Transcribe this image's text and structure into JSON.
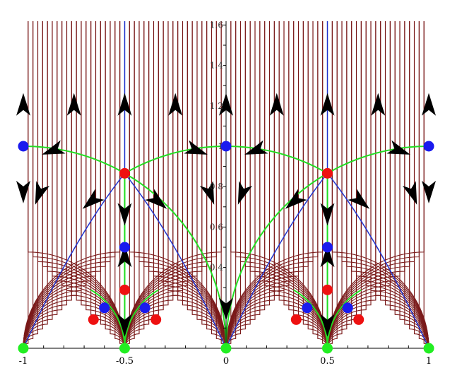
{
  "chart_data": {
    "type": "phase-portrait",
    "x_range": [
      -1,
      1
    ],
    "y_range": [
      0,
      1.62
    ],
    "x_ticks": [
      {
        "value": -1,
        "label": "-1"
      },
      {
        "value": -0.5,
        "label": "-0.5"
      },
      {
        "value": 0,
        "label": "0"
      },
      {
        "value": 0.5,
        "label": "0.5"
      },
      {
        "value": 1,
        "label": "1"
      }
    ],
    "y_ticks": [
      {
        "value": 0.4,
        "label": "0.4"
      },
      {
        "value": 0.6,
        "label": "0.6"
      },
      {
        "value": 0.8,
        "label": "0.8"
      },
      {
        "value": 1.0,
        "label": "1"
      },
      {
        "value": 1.2,
        "label": "1.2"
      },
      {
        "value": 1.4,
        "label": "1.4"
      },
      {
        "value": 1.6,
        "label": "1.6"
      }
    ],
    "colors": {
      "flow_lines": "#7a1a1a",
      "separatrix": "#2233cc",
      "boundary_arcs": "#22dd22",
      "arrows": "#000000",
      "axis": "#000000"
    },
    "points": {
      "green": [
        [
          -1,
          0
        ],
        [
          -0.5,
          0
        ],
        [
          0,
          0
        ],
        [
          0.5,
          0
        ],
        [
          1,
          0
        ]
      ],
      "blue": [
        [
          -1,
          1
        ],
        [
          0,
          1
        ],
        [
          1,
          1
        ],
        [
          -0.5,
          0.5
        ],
        [
          0.5,
          0.5
        ],
        [
          -0.6,
          0.2
        ],
        [
          -0.4,
          0.2
        ],
        [
          0.4,
          0.2
        ],
        [
          0.6,
          0.2
        ]
      ],
      "red": [
        [
          -0.5,
          0.866
        ],
        [
          0.5,
          0.866
        ],
        [
          -0.5,
          0.289
        ],
        [
          0.5,
          0.289
        ],
        [
          -0.654,
          0.142
        ],
        [
          -0.346,
          0.142
        ],
        [
          0.346,
          0.142
        ],
        [
          0.654,
          0.142
        ]
      ]
    }
  }
}
